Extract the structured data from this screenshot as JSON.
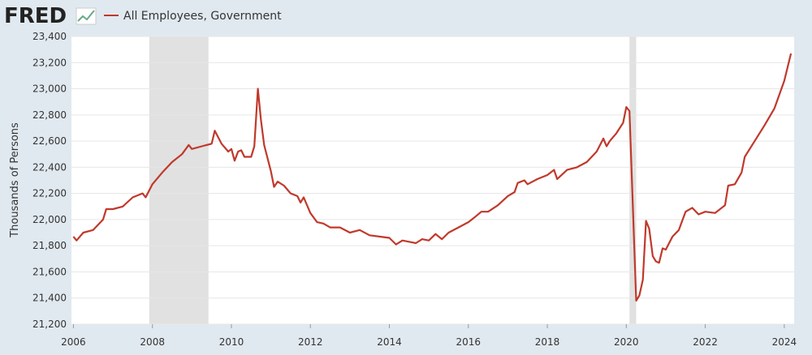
{
  "chart_data": {
    "type": "line",
    "brand": "FRED",
    "y_axis_label": "Thousands of Persons",
    "series": [
      {
        "name": "All Employees, Government",
        "color": "#c0392b",
        "x": [
          2006.0,
          2006.08,
          2006.25,
          2006.5,
          2006.75,
          2006.83,
          2007.0,
          2007.25,
          2007.5,
          2007.75,
          2007.83,
          2008.0,
          2008.25,
          2008.5,
          2008.75,
          2008.92,
          2009.0,
          2009.25,
          2009.5,
          2009.58,
          2009.75,
          2009.92,
          2010.0,
          2010.08,
          2010.17,
          2010.25,
          2010.33,
          2010.5,
          2010.58,
          2010.67,
          2010.75,
          2010.83,
          2011.0,
          2011.08,
          2011.17,
          2011.33,
          2011.5,
          2011.67,
          2011.75,
          2011.83,
          2012.0,
          2012.17,
          2012.33,
          2012.5,
          2012.75,
          2013.0,
          2013.25,
          2013.5,
          2013.75,
          2014.0,
          2014.17,
          2014.33,
          2014.5,
          2014.67,
          2014.83,
          2015.0,
          2015.17,
          2015.33,
          2015.5,
          2015.75,
          2016.0,
          2016.17,
          2016.33,
          2016.5,
          2016.75,
          2017.0,
          2017.17,
          2017.25,
          2017.42,
          2017.5,
          2017.75,
          2018.0,
          2018.17,
          2018.25,
          2018.5,
          2018.75,
          2019.0,
          2019.25,
          2019.42,
          2019.5,
          2019.58,
          2019.75,
          2019.92,
          2020.0,
          2020.08,
          2020.25,
          2020.33,
          2020.42,
          2020.5,
          2020.58,
          2020.67,
          2020.75,
          2020.83,
          2020.92,
          2021.0,
          2021.17,
          2021.33,
          2021.5,
          2021.67,
          2021.83,
          2022.0,
          2022.25,
          2022.5,
          2022.58,
          2022.75,
          2022.92,
          2023.0,
          2023.25,
          2023.5,
          2023.75,
          2024.0,
          2024.17
        ],
        "values": [
          21870,
          21840,
          21900,
          21920,
          22000,
          22080,
          22080,
          22100,
          22170,
          22200,
          22170,
          22270,
          22360,
          22440,
          22500,
          22570,
          22540,
          22560,
          22580,
          22680,
          22580,
          22520,
          22540,
          22450,
          22520,
          22530,
          22480,
          22480,
          22560,
          23000,
          22760,
          22570,
          22370,
          22250,
          22290,
          22260,
          22200,
          22180,
          22130,
          22170,
          22050,
          21980,
          21970,
          21940,
          21940,
          21900,
          21920,
          21880,
          21870,
          21860,
          21810,
          21840,
          21830,
          21820,
          21850,
          21840,
          21890,
          21850,
          21900,
          21940,
          21980,
          22020,
          22060,
          22060,
          22110,
          22180,
          22210,
          22280,
          22300,
          22270,
          22310,
          22340,
          22380,
          22310,
          22380,
          22400,
          22440,
          22520,
          22620,
          22560,
          22600,
          22660,
          22740,
          22860,
          22830,
          21380,
          21420,
          21540,
          21990,
          21930,
          21720,
          21680,
          21670,
          21780,
          21770,
          21870,
          21920,
          22060,
          22090,
          22040,
          22060,
          22050,
          22110,
          22260,
          22270,
          22360,
          22480,
          22600,
          22720,
          22850,
          23060,
          23270
        ]
      }
    ],
    "recessions": [
      [
        2007.92,
        2009.42
      ],
      [
        2020.08,
        2020.25
      ]
    ],
    "recession_color": "#e1e1e1",
    "xlim": [
      2005.95,
      2024.25
    ],
    "xticks": [
      2006,
      2008,
      2010,
      2012,
      2014,
      2016,
      2018,
      2020,
      2022,
      2024
    ],
    "ylim": [
      21200,
      23400
    ],
    "yticks": [
      {
        "value": 21200,
        "label": "21,200"
      },
      {
        "value": 21400,
        "label": "21,400"
      },
      {
        "value": 21600,
        "label": "21,600"
      },
      {
        "value": 21800,
        "label": "21,800"
      },
      {
        "value": 22000,
        "label": "22,000"
      },
      {
        "value": 22200,
        "label": "22,200"
      },
      {
        "value": 22400,
        "label": "22,400"
      },
      {
        "value": 22600,
        "label": "22,600"
      },
      {
        "value": 22800,
        "label": "22,800"
      },
      {
        "value": 23000,
        "label": "23,000"
      },
      {
        "value": 23200,
        "label": "23,200"
      },
      {
        "value": 23400,
        "label": "23,400"
      }
    ],
    "grid": true
  }
}
